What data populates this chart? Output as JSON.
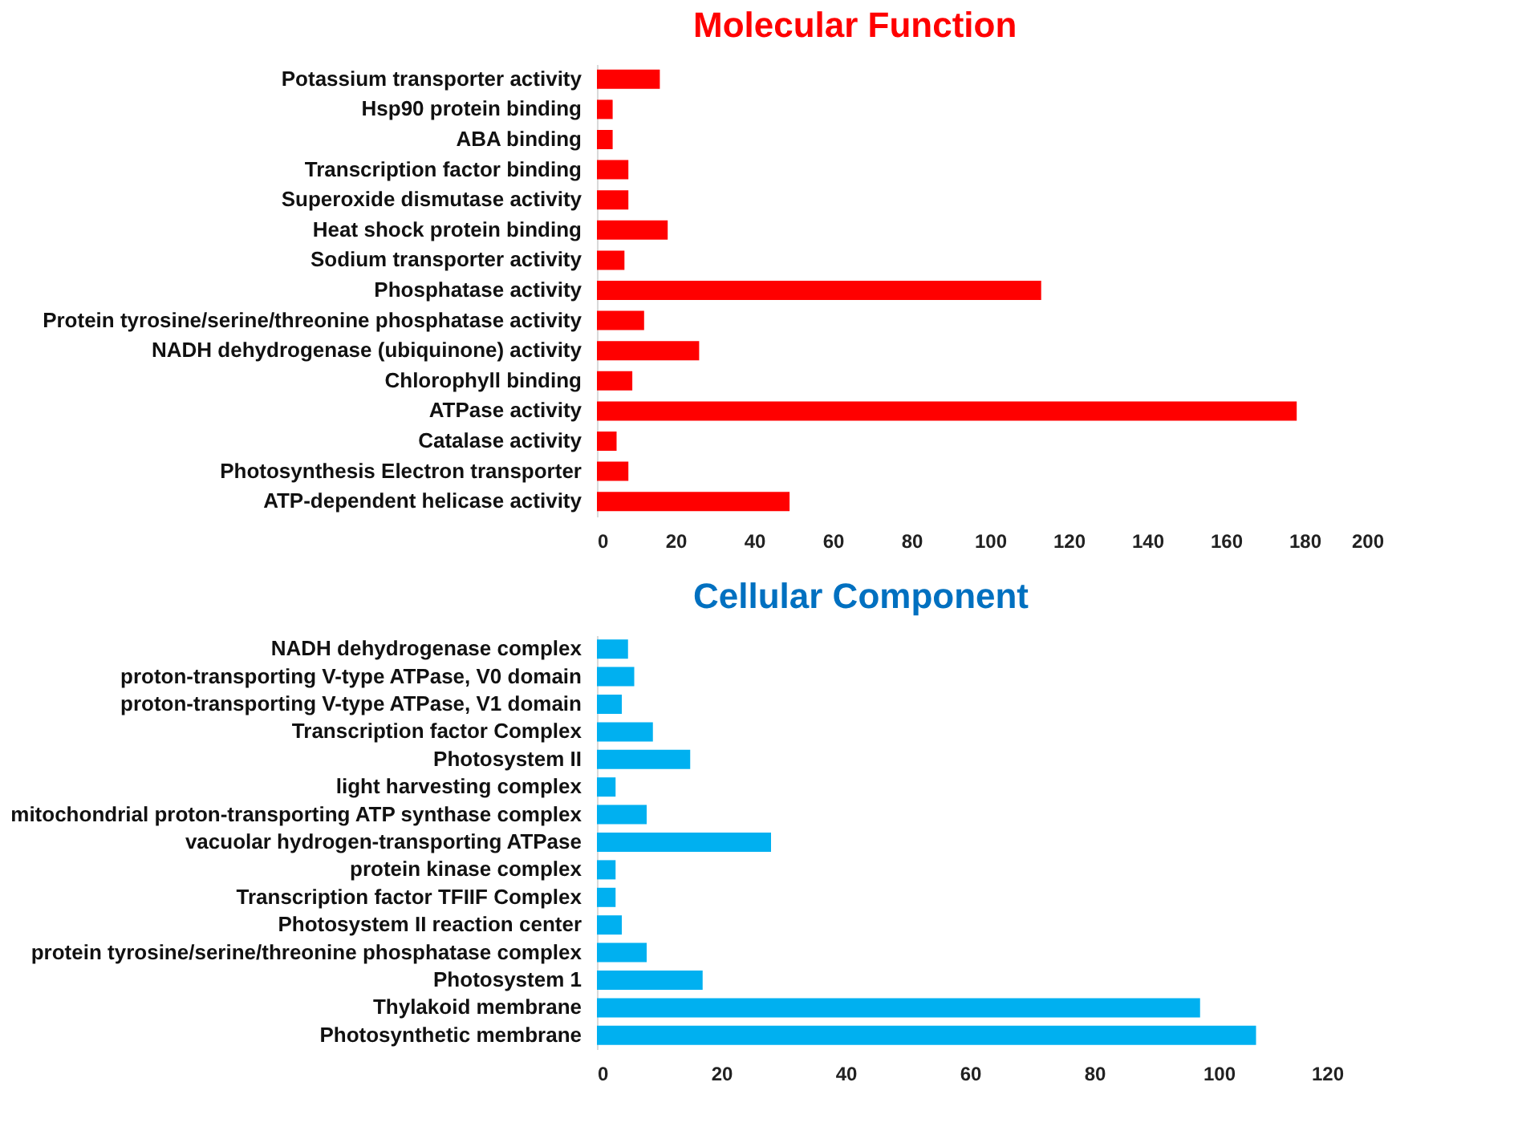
{
  "chart_data": [
    {
      "type": "bar",
      "orientation": "horizontal",
      "title": "Molecular Function",
      "categories": [
        "Potassium transporter activity",
        "Hsp90 protein binding",
        "ABA binding",
        "Transcription factor binding",
        "Superoxide dismutase activity",
        "Heat shock protein binding",
        "Sodium transporter activity",
        "Phosphatase activity",
        "Protein tyrosine/serine/threonine phosphatase activity",
        "NADH dehydrogenase (ubiquinone) activity",
        "Chlorophyll binding",
        "ATPase activity",
        "Catalase activity",
        "Photosynthesis Electron transporter",
        "ATP-dependent helicase activity"
      ],
      "values": [
        16,
        4,
        4,
        8,
        8,
        18,
        7,
        113,
        12,
        26,
        9,
        178,
        5,
        8,
        49
      ],
      "color": "#ff0000",
      "xlim": [
        0,
        200
      ],
      "xticks": [
        0,
        20,
        40,
        60,
        80,
        100,
        120,
        140,
        160,
        180,
        200
      ],
      "grid": false
    },
    {
      "type": "bar",
      "orientation": "horizontal",
      "title": "Cellular Component",
      "categories": [
        "NADH dehydrogenase complex",
        "proton-transporting V-type ATPase, V0 domain",
        "proton-transporting V-type ATPase, V1 domain",
        "Transcription factor Complex",
        "Photosystem II",
        "light harvesting complex",
        "mitochondrial proton-transporting ATP synthase complex",
        "vacuolar hydrogen-transporting ATPase",
        "protein kinase complex",
        "Transcription factor TFIIF Complex",
        "Photosystem II reaction center",
        "protein tyrosine/serine/threonine phosphatase complex",
        "Photosystem 1",
        "Thylakoid membrane",
        "Photosynthetic membrane"
      ],
      "values": [
        5,
        6,
        4,
        9,
        15,
        3,
        8,
        28,
        3,
        3,
        4,
        8,
        17,
        97,
        106
      ],
      "color": "#00b0f0",
      "xlim": [
        0,
        120
      ],
      "xticks": [
        0,
        20,
        40,
        60,
        80,
        100,
        120
      ],
      "grid": false
    }
  ]
}
